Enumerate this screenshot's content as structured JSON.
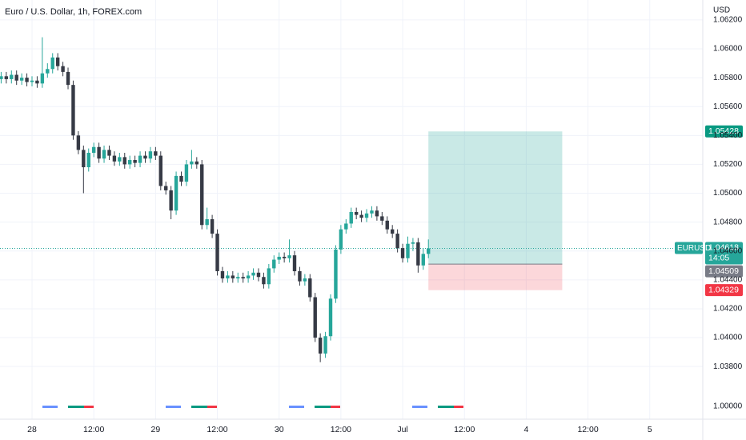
{
  "chart_data": {
    "type": "candlestick",
    "title": "Euro / U.S. Dollar, 1h, FOREX.com",
    "currency": "USD",
    "symbol": "EURUSD",
    "countdown": "14:05",
    "indicator_label": "1.00000",
    "x": [
      -6,
      -5,
      -4,
      -3,
      -2,
      -1,
      0,
      1,
      2,
      3,
      4,
      5,
      6,
      7,
      8,
      9,
      10,
      11,
      12,
      13,
      14,
      15,
      16,
      17,
      18,
      19,
      20,
      21,
      22,
      23,
      24,
      25,
      26,
      27,
      28,
      29,
      30,
      31,
      32,
      33,
      34,
      35,
      36,
      37,
      38,
      39,
      40,
      41,
      42,
      43,
      44,
      45,
      46,
      47,
      48,
      49,
      50,
      51,
      52,
      53,
      54,
      55,
      56,
      57,
      58,
      59,
      60,
      61,
      62,
      63,
      64,
      65,
      66,
      67,
      68,
      69,
      70,
      71,
      72,
      73,
      74,
      75,
      76,
      77
    ],
    "open": [
      1.0579,
      1.0581,
      1.0579,
      1.0582,
      1.0578,
      1.058,
      1.0577,
      1.0578,
      1.0576,
      1.0583,
      1.0586,
      1.0594,
      1.0588,
      1.0584,
      1.0575,
      1.054,
      1.053,
      1.0518,
      1.0528,
      1.0532,
      1.0524,
      1.053,
      1.0526,
      1.0522,
      1.0525,
      1.052,
      1.0523,
      1.0521,
      1.0526,
      1.0524,
      1.0529,
      1.0526,
      1.0505,
      1.0502,
      1.0488,
      1.0512,
      1.0508,
      1.052,
      1.0522,
      1.052,
      1.0478,
      1.0482,
      1.0472,
      1.0446,
      1.0441,
      1.0443,
      1.0441,
      1.0442,
      1.0441,
      1.0443,
      1.0445,
      1.0442,
      1.0437,
      1.0448,
      1.0454,
      1.0456,
      1.0455,
      1.0457,
      1.0446,
      1.0439,
      1.0441,
      1.0428,
      1.04,
      1.0389,
      1.0401,
      1.0427,
      1.0461,
      1.0475,
      1.0479,
      1.0487,
      1.0485,
      1.0483,
      1.0486,
      1.0488,
      1.0484,
      1.0481,
      1.0475,
      1.0472,
      1.0462,
      1.0455,
      1.0465,
      1.0466,
      1.045,
      1.0458
    ],
    "high": [
      1.0584,
      1.0584,
      1.0585,
      1.0585,
      1.0583,
      1.0583,
      1.0581,
      1.0581,
      1.0608,
      1.059,
      1.0597,
      1.0597,
      1.0591,
      1.0587,
      1.0578,
      1.0543,
      1.0533,
      1.0531,
      1.0535,
      1.0535,
      1.0533,
      1.0533,
      1.0529,
      1.0528,
      1.0528,
      1.0526,
      1.0526,
      1.0529,
      1.0529,
      1.0532,
      1.0532,
      1.0529,
      1.0508,
      1.0505,
      1.0515,
      1.0515,
      1.0523,
      1.053,
      1.0525,
      1.0523,
      1.049,
      1.0485,
      1.0475,
      1.0449,
      1.0446,
      1.0446,
      1.0445,
      1.0445,
      1.0446,
      1.0448,
      1.0448,
      1.0445,
      1.0451,
      1.0457,
      1.0459,
      1.0459,
      1.0468,
      1.046,
      1.0449,
      1.0444,
      1.0444,
      1.0431,
      1.0403,
      1.0404,
      1.043,
      1.0464,
      1.0478,
      1.0482,
      1.049,
      1.049,
      1.0488,
      1.0489,
      1.0491,
      1.0491,
      1.0487,
      1.0484,
      1.0478,
      1.0475,
      1.0465,
      1.047,
      1.0469,
      1.0469,
      1.0462,
      1.0468
    ],
    "low": [
      1.0576,
      1.0576,
      1.0576,
      1.0575,
      1.0575,
      1.0574,
      1.0574,
      1.0573,
      1.0573,
      1.058,
      1.0583,
      1.0585,
      1.0581,
      1.0572,
      1.0537,
      1.0527,
      1.05,
      1.0515,
      1.0525,
      1.0521,
      1.0521,
      1.0523,
      1.0519,
      1.0519,
      1.0517,
      1.0517,
      1.0518,
      1.0518,
      1.0521,
      1.0521,
      1.0523,
      1.0502,
      1.0499,
      1.0482,
      1.0485,
      1.0505,
      1.0505,
      1.0517,
      1.0517,
      1.0475,
      1.0475,
      1.0469,
      1.0443,
      1.0438,
      1.0438,
      1.0438,
      1.0438,
      1.0438,
      1.0438,
      1.044,
      1.0439,
      1.0434,
      1.0434,
      1.0445,
      1.0451,
      1.0452,
      1.0452,
      1.0443,
      1.0436,
      1.0436,
      1.0425,
      1.0397,
      1.0383,
      1.0386,
      1.0398,
      1.0424,
      1.0458,
      1.0472,
      1.0476,
      1.0482,
      1.048,
      1.048,
      1.0483,
      1.0481,
      1.0478,
      1.0472,
      1.0469,
      1.0459,
      1.0452,
      1.0452,
      1.046,
      1.0445,
      1.0447,
      1.0455
    ],
    "close": [
      1.0581,
      1.0579,
      1.0582,
      1.0578,
      1.058,
      1.0577,
      1.0578,
      1.0576,
      1.0583,
      1.0586,
      1.0594,
      1.0588,
      1.0584,
      1.0575,
      1.054,
      1.053,
      1.0518,
      1.0528,
      1.0532,
      1.0524,
      1.053,
      1.0526,
      1.0522,
      1.0525,
      1.052,
      1.0523,
      1.0521,
      1.0526,
      1.0524,
      1.0529,
      1.0526,
      1.0505,
      1.0502,
      1.0488,
      1.0512,
      1.0508,
      1.052,
      1.0522,
      1.052,
      1.0478,
      1.0482,
      1.0472,
      1.0446,
      1.0441,
      1.0443,
      1.0441,
      1.0442,
      1.0441,
      1.0443,
      1.0445,
      1.0442,
      1.0437,
      1.0448,
      1.0454,
      1.0456,
      1.0455,
      1.0457,
      1.0446,
      1.0439,
      1.0441,
      1.0428,
      1.04,
      1.0389,
      1.0401,
      1.0427,
      1.0461,
      1.0475,
      1.0479,
      1.0487,
      1.0485,
      1.0483,
      1.0486,
      1.0488,
      1.0484,
      1.0481,
      1.0475,
      1.0472,
      1.0462,
      1.0455,
      1.0465,
      1.0466,
      1.045,
      1.0458,
      1.04618
    ],
    "up_color": "#26a69a",
    "down_color": "#363a45",
    "xlim": [
      -6.22,
      130.3
    ],
    "xticks": [
      {
        "value": 0,
        "label": "28"
      },
      {
        "value": 12,
        "label": "12:00"
      },
      {
        "value": 24,
        "label": "29"
      },
      {
        "value": 36,
        "label": "12:00"
      },
      {
        "value": 48,
        "label": "30"
      },
      {
        "value": 60,
        "label": "12:00"
      },
      {
        "value": 72,
        "label": "Jul"
      },
      {
        "value": 84,
        "label": "12:00"
      },
      {
        "value": 96,
        "label": "4"
      },
      {
        "value": 108,
        "label": "12:00"
      },
      {
        "value": 120,
        "label": "5"
      }
    ],
    "ylim": [
      1.03402,
      1.06338
    ],
    "yticks": [
      {
        "value": 1.062,
        "label": "1.06200"
      },
      {
        "value": 1.06,
        "label": "1.06000"
      },
      {
        "value": 1.058,
        "label": "1.05800"
      },
      {
        "value": 1.056,
        "label": "1.05600"
      },
      {
        "value": 1.054,
        "label": "1.05400"
      },
      {
        "value": 1.052,
        "label": "1.05200"
      },
      {
        "value": 1.05,
        "label": "1.05000"
      },
      {
        "value": 1.048,
        "label": "1.04800"
      },
      {
        "value": 1.046,
        "label": "1.04600"
      },
      {
        "value": 1.044,
        "label": "1.04400"
      },
      {
        "value": 1.042,
        "label": "1.04200"
      },
      {
        "value": 1.04,
        "label": "1.04000"
      },
      {
        "value": 1.038,
        "label": "1.03800"
      }
    ],
    "grid": true,
    "position": {
      "start": 77,
      "end": 103,
      "entry": 1.04509,
      "target": 1.05428,
      "stop": 1.04329
    }
  }
}
